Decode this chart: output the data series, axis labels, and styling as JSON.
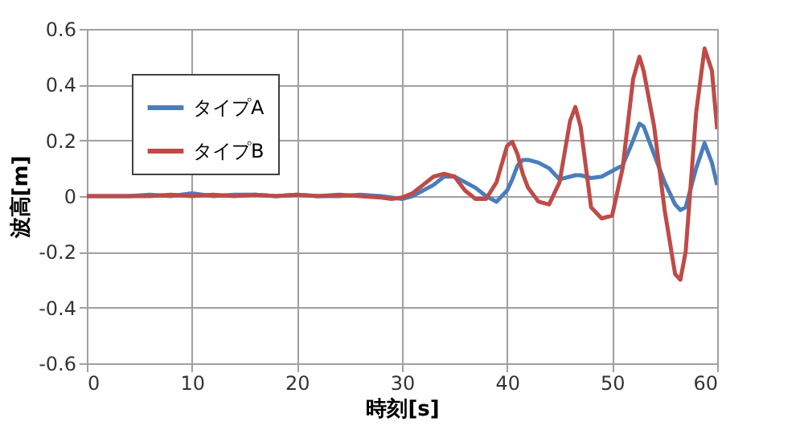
{
  "chart_data": {
    "type": "line",
    "xlabel": "時刻[s]",
    "ylabel": "波高[m]",
    "x": [
      0,
      2,
      4,
      6,
      8,
      10,
      12,
      14,
      16,
      18,
      20,
      22,
      24,
      26,
      28,
      29,
      30,
      31,
      32,
      33,
      34,
      35,
      36,
      37,
      38,
      39,
      40,
      40.5,
      41,
      41.5,
      42,
      43,
      44,
      45,
      46,
      46.5,
      47,
      48,
      49,
      50,
      51,
      52,
      52.6,
      53,
      54,
      55,
      56,
      56.5,
      57,
      58,
      58.8,
      59.5,
      60
    ],
    "series": [
      {
        "name": "タイプA",
        "color": "#4a7ebb",
        "values": [
          0,
          0,
          0,
          0.005,
          0,
          0.01,
          0,
          0.005,
          0.005,
          0,
          0.005,
          0,
          0,
          0.005,
          0,
          -0.005,
          -0.01,
          0,
          0.02,
          0.04,
          0.07,
          0.07,
          0.05,
          0.03,
          0,
          -0.02,
          0.02,
          0.06,
          0.11,
          0.13,
          0.13,
          0.12,
          0.1,
          0.06,
          0.07,
          0.075,
          0.075,
          0.065,
          0.07,
          0.09,
          0.11,
          0.2,
          0.26,
          0.25,
          0.15,
          0.05,
          -0.03,
          -0.05,
          -0.04,
          0.1,
          0.19,
          0.12,
          0.04
        ]
      },
      {
        "name": "タイプB",
        "color": "#be4b48",
        "values": [
          0,
          0,
          0,
          0,
          0.005,
          0,
          0.005,
          0,
          0.005,
          0,
          0.005,
          0,
          0.005,
          0,
          -0.005,
          -0.01,
          -0.005,
          0.01,
          0.04,
          0.07,
          0.08,
          0.07,
          0.02,
          -0.01,
          -0.01,
          0.05,
          0.18,
          0.195,
          0.15,
          0.08,
          0.03,
          -0.02,
          -0.03,
          0.05,
          0.27,
          0.32,
          0.25,
          -0.04,
          -0.08,
          -0.07,
          0.1,
          0.42,
          0.5,
          0.45,
          0.25,
          -0.05,
          -0.28,
          -0.3,
          -0.2,
          0.3,
          0.53,
          0.45,
          0.24
        ]
      }
    ],
    "xlim": [
      0,
      60
    ],
    "xticks": [
      0,
      10,
      20,
      30,
      40,
      50,
      60
    ],
    "ylim": [
      -0.6,
      0.6
    ],
    "yticks": [
      -0.6,
      -0.4,
      -0.2,
      0,
      0.2,
      0.4,
      0.6
    ],
    "grid": true,
    "legend": "top left",
    "marker": "none",
    "line_style": "solid"
  }
}
